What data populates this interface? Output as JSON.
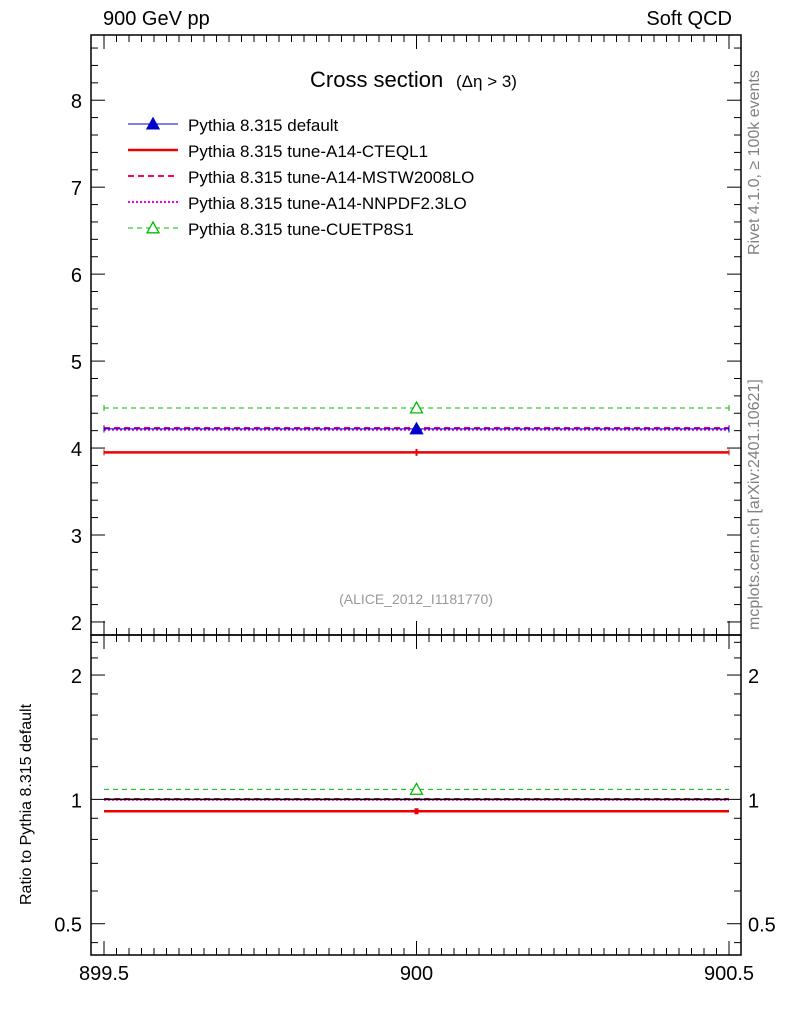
{
  "header": {
    "left": "900 GeV pp",
    "right": "Soft QCD"
  },
  "side_labels": {
    "rivet": "Rivet 4.1.0, ≥ 100k events",
    "mcplots": "mcplots.cern.ch [arXiv:2401.10621]"
  },
  "chart_data": [
    {
      "type": "line",
      "panel": "main",
      "title": "Cross section",
      "title_cut": "(Δη > 3)",
      "watermark": "(ALICE_2012_I1181770)",
      "xlim": [
        899.5,
        900.5
      ],
      "ylim": [
        1.85,
        8.75
      ],
      "yticks": [
        2,
        3,
        4,
        5,
        6,
        7,
        8
      ],
      "xticks": [
        899.5,
        900,
        900.5
      ],
      "series": [
        {
          "name": "Pythia 8.315 default",
          "color": "#0000cc",
          "style": "solid-triangle",
          "x": [
            900
          ],
          "y": [
            4.22
          ],
          "err": [
            0.03
          ]
        },
        {
          "name": "Pythia 8.315 tune-A14-CTEQL1",
          "color": "#ee0000",
          "style": "solid-thick",
          "x": [
            900
          ],
          "y": [
            3.95
          ],
          "err": [
            0.04
          ]
        },
        {
          "name": "Pythia 8.315 tune-A14-MSTW2008LO",
          "color": "#ff0066",
          "style": "dashed",
          "x": [
            900
          ],
          "y": [
            4.23
          ],
          "err": [
            0.03
          ]
        },
        {
          "name": "Pythia 8.315 tune-A14-NNPDF2.3LO",
          "color": "#ee00ee",
          "style": "dotted",
          "x": [
            900
          ],
          "y": [
            4.21
          ],
          "err": [
            0.03
          ]
        },
        {
          "name": "Pythia 8.315 tune-CUETP8S1",
          "color": "#00bb00",
          "style": "dashed-open-triangle",
          "x": [
            900
          ],
          "y": [
            4.46
          ],
          "err": [
            0.03
          ]
        }
      ]
    },
    {
      "type": "line",
      "panel": "ratio",
      "ylabel": "Ratio to Pythia 8.315 default",
      "yscale": "log",
      "ylim": [
        0.42,
        2.5
      ],
      "yticks": [
        0.5,
        1,
        2
      ],
      "ytick_labels": [
        "0.5",
        "1",
        "2"
      ],
      "xlim": [
        899.5,
        900.5
      ],
      "xticks": [
        899.5,
        900,
        900.5
      ],
      "xtick_labels": [
        "899.5",
        "900",
        "900.5"
      ],
      "series": [
        {
          "name": "Pythia 8.315 default",
          "x": [
            900
          ],
          "y": [
            1.0
          ]
        },
        {
          "name": "Pythia 8.315 tune-A14-CTEQL1",
          "x": [
            900
          ],
          "y": [
            0.936
          ]
        },
        {
          "name": "Pythia 8.315 tune-A14-MSTW2008LO",
          "x": [
            900
          ],
          "y": [
            1.002
          ]
        },
        {
          "name": "Pythia 8.315 tune-A14-NNPDF2.3LO",
          "x": [
            900
          ],
          "y": [
            0.998
          ]
        },
        {
          "name": "Pythia 8.315 tune-CUETP8S1",
          "x": [
            900
          ],
          "y": [
            1.057
          ]
        }
      ]
    }
  ]
}
